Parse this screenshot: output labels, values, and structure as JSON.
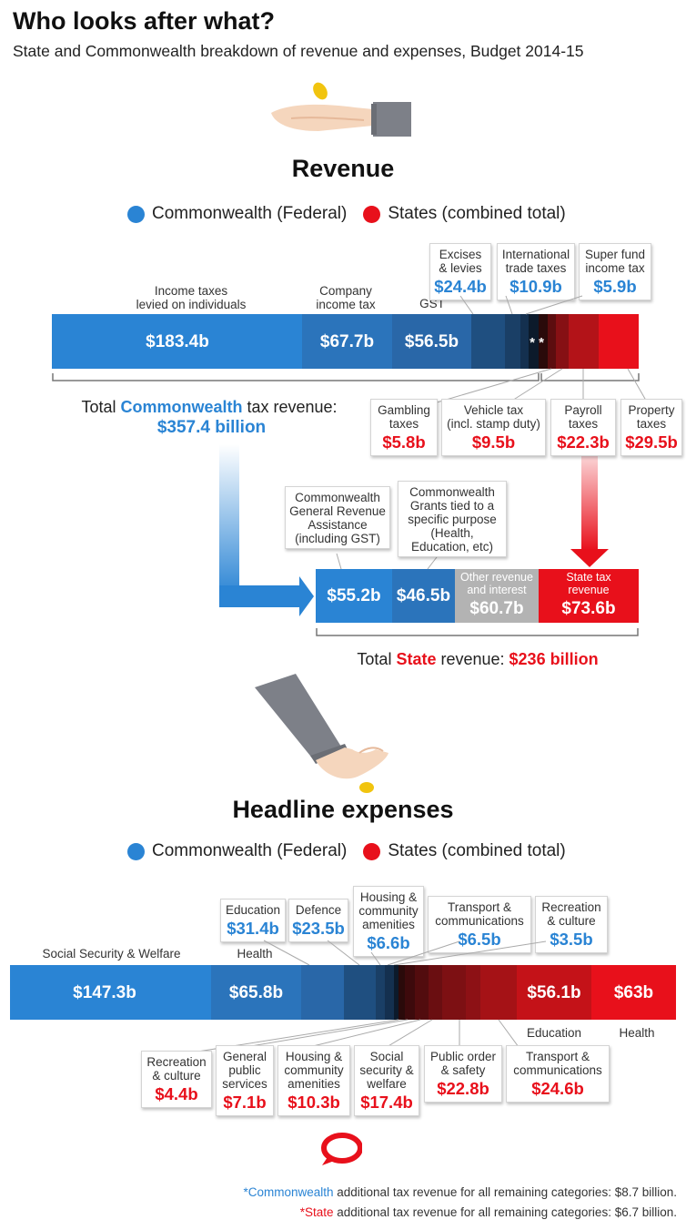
{
  "header": {
    "title": "Who looks after what?",
    "subtitle": "State and Commonwealth breakdown of revenue and expenses, Budget 2014-15"
  },
  "legend": {
    "commonwealth": "Commonwealth (Federal)",
    "states": "States (combined total)"
  },
  "colors": {
    "commonwealth_blue": "#2a84d4",
    "state_red": "#e8101b",
    "other_grey": "#b3b3b3"
  },
  "revenue": {
    "title": "Revenue",
    "total_commonwealth_prefix": "Total ",
    "total_commonwealth_highlight": "Commonwealth",
    "total_commonwealth_suffix": " tax revenue:",
    "total_commonwealth_value": "$357.4 billion",
    "total_state_prefix": "Total ",
    "total_state_highlight": "State",
    "total_state_suffix": " revenue: ",
    "total_state_value": "$236 billion",
    "asterisks": "* *",
    "gst_label": "GST"
  },
  "expenses": {
    "title": "Headline expenses"
  },
  "chart_data": [
    {
      "type": "bar",
      "title": "Revenue",
      "series": [
        {
          "name": "Commonwealth (Federal)",
          "categories": [
            "Income taxes levied on individuals",
            "Company income tax",
            "GST",
            "Excises & levies",
            "International trade taxes",
            "Super fund income tax"
          ],
          "values": [
            183.4,
            67.7,
            56.5,
            24.4,
            10.9,
            5.9
          ],
          "labels": [
            "$183.4b",
            "$67.7b",
            "$56.5b",
            "$24.4b",
            "$10.9b",
            "$5.9b"
          ]
        },
        {
          "name": "States (combined total)",
          "categories": [
            "Gambling taxes",
            "Vehicle tax (incl. stamp duty)",
            "Payroll taxes",
            "Property taxes"
          ],
          "values": [
            5.8,
            9.5,
            22.3,
            29.5
          ],
          "labels": [
            "$5.8b",
            "$9.5b",
            "$22.3b",
            "$29.5b"
          ]
        }
      ]
    },
    {
      "type": "bar",
      "title": "Total State revenue",
      "categories": [
        "Commonwealth General Revenue Assistance (including GST)",
        "Commonwealth Grants tied to a specific purpose (Health, Education, etc)",
        "Other revenue and interest",
        "State tax revenue"
      ],
      "values": [
        55.2,
        46.5,
        60.7,
        73.6
      ],
      "labels": [
        "$55.2b",
        "$46.5b",
        "$60.7b",
        "$73.6b"
      ]
    },
    {
      "type": "bar",
      "title": "Headline expenses",
      "series": [
        {
          "name": "Commonwealth (Federal)",
          "categories": [
            "Social Security & Welfare",
            "Health",
            "Education",
            "Defence",
            "Housing & community amenities",
            "Transport & communications",
            "Recreation & culture"
          ],
          "values": [
            147.3,
            65.8,
            31.4,
            23.5,
            6.6,
            6.5,
            3.5
          ],
          "labels": [
            "$147.3b",
            "$65.8b",
            "$31.4b",
            "$23.5b",
            "$6.6b",
            "$6.5b",
            "$3.5b"
          ]
        },
        {
          "name": "States (combined total)",
          "categories": [
            "Recreation & culture",
            "General public services",
            "Housing & community amenities",
            "Social security & welfare",
            "Public order & safety",
            "Transport & communications",
            "Education",
            "Health"
          ],
          "values": [
            4.4,
            7.1,
            10.3,
            17.4,
            22.8,
            24.6,
            56.1,
            63
          ],
          "labels": [
            "$4.4b",
            "$7.1b",
            "$10.3b",
            "$17.4b",
            "$22.8b",
            "$24.6b",
            "$56.1b",
            "$63b"
          ]
        }
      ]
    }
  ],
  "rev_labels": {
    "income": [
      "Income taxes",
      "levied on individuals"
    ],
    "company": [
      "Company",
      "income tax"
    ],
    "excises": [
      "Excises",
      "& levies"
    ],
    "intl": [
      "International",
      "trade taxes"
    ],
    "super": [
      "Super fund",
      "income tax"
    ],
    "gambling": [
      "Gambling",
      "taxes"
    ],
    "vehicle": [
      "Vehicle tax",
      "(incl. stamp duty)"
    ],
    "payroll": [
      "Payroll",
      "taxes"
    ],
    "property": [
      "Property",
      "taxes"
    ]
  },
  "state_labels": {
    "gra": [
      "Commonwealth",
      "General Revenue",
      "Assistance",
      "(including GST)"
    ],
    "grants": [
      "Commonwealth",
      "Grants tied to a",
      "specific purpose",
      "(Health,",
      "Education, etc)"
    ],
    "other": [
      "Other revenue",
      "and interest"
    ],
    "statetax": [
      "State tax",
      "revenue"
    ]
  },
  "exp_labels": {
    "ssw": "Social Security & Welfare",
    "health": "Health",
    "education": "Education",
    "defence": "Defence",
    "housing": [
      "Housing &",
      "community",
      "amenities"
    ],
    "transport": [
      "Transport &",
      "communications"
    ],
    "recreation": [
      "Recreation",
      "& culture"
    ],
    "s_recreation": [
      "Recreation",
      "& culture"
    ],
    "s_general": [
      "General",
      "public",
      "services"
    ],
    "s_housing": [
      "Housing &",
      "community",
      "amenities"
    ],
    "s_social": [
      "Social",
      "security &",
      "welfare"
    ],
    "s_public": [
      "Public order",
      "& safety"
    ],
    "s_transport": [
      "Transport &",
      "communications"
    ],
    "s_education": "Education",
    "s_health": "Health"
  },
  "footnotes": {
    "line1_star": "*",
    "line1_highlight": "Commonwealth",
    "line1_rest": " additional tax revenue for all remaining categories: $8.7 billion.",
    "line2_star": "*",
    "line2_highlight": "State",
    "line2_rest": " additional tax revenue for all remaining categories: $6.7 billion."
  },
  "icons": {
    "hand_top": "hand-holding-coin-icon",
    "hand_mid": "hand-dropping-coin-icon",
    "logo": "speech-bubble-logo-icon"
  }
}
